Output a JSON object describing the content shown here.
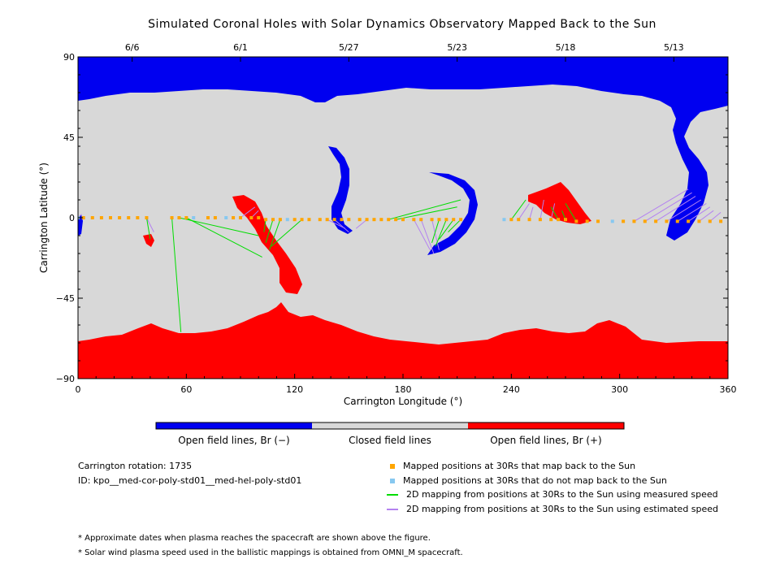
{
  "title": "Simulated Coronal Holes with Solar Dynamics Observatory Mapped Back to the Sun",
  "colors": {
    "open_negative": "#0000f0",
    "closed": "#d8d8d8",
    "open_positive": "#ff0000",
    "mapped_back": "#ffa500",
    "not_mapped": "#87c8f0",
    "measured_speed": "#00dd00",
    "estimated_speed": "#b482f0"
  },
  "chart_data": {
    "type": "map",
    "xlabel": "Carrington Longitude (°)",
    "ylabel": "Carrington Latitude (°)",
    "xlim": [
      0,
      360
    ],
    "ylim": [
      -90,
      90
    ],
    "x_ticks": [
      "0",
      "60",
      "120",
      "180",
      "240",
      "300",
      "360"
    ],
    "y_ticks": [
      "90",
      "45",
      "0",
      "−45",
      "−90"
    ],
    "top_axis_dates": [
      {
        "longitude": 30,
        "label": "6/6"
      },
      {
        "longitude": 90,
        "label": "6/1"
      },
      {
        "longitude": 150,
        "label": "5/27"
      },
      {
        "longitude": 210,
        "label": "5/23"
      },
      {
        "longitude": 270,
        "label": "5/18"
      },
      {
        "longitude": 330,
        "label": "5/13"
      }
    ],
    "colorbar_labels": [
      "Open field lines, Br (−)",
      "Closed field lines",
      "Open field lines, Br (+)"
    ],
    "mapped_points": [
      {
        "lon": 3,
        "lat": 0
      },
      {
        "lon": 8,
        "lat": 0
      },
      {
        "lon": 13,
        "lat": 0
      },
      {
        "lon": 18,
        "lat": 0
      },
      {
        "lon": 23,
        "lat": 0
      },
      {
        "lon": 28,
        "lat": 0
      },
      {
        "lon": 33,
        "lat": 0
      },
      {
        "lon": 38,
        "lat": 0
      },
      {
        "lon": 52,
        "lat": 0
      },
      {
        "lon": 56,
        "lat": 0
      },
      {
        "lon": 60,
        "lat": 0
      },
      {
        "lon": 72,
        "lat": 0
      },
      {
        "lon": 76,
        "lat": 0
      },
      {
        "lon": 86,
        "lat": 0
      },
      {
        "lon": 90,
        "lat": 0
      },
      {
        "lon": 96,
        "lat": 0
      },
      {
        "lon": 100,
        "lat": 0
      },
      {
        "lon": 104,
        "lat": -1
      },
      {
        "lon": 108,
        "lat": -1
      },
      {
        "lon": 112,
        "lat": -1
      },
      {
        "lon": 120,
        "lat": -1
      },
      {
        "lon": 124,
        "lat": -1
      },
      {
        "lon": 128,
        "lat": -1
      },
      {
        "lon": 134,
        "lat": -1
      },
      {
        "lon": 138,
        "lat": -1
      },
      {
        "lon": 142,
        "lat": -1
      },
      {
        "lon": 146,
        "lat": -1
      },
      {
        "lon": 150,
        "lat": -1
      },
      {
        "lon": 156,
        "lat": -1
      },
      {
        "lon": 160,
        "lat": -1
      },
      {
        "lon": 164,
        "lat": -1
      },
      {
        "lon": 168,
        "lat": -1
      },
      {
        "lon": 172,
        "lat": -1
      },
      {
        "lon": 176,
        "lat": -1
      },
      {
        "lon": 180,
        "lat": -1
      },
      {
        "lon": 186,
        "lat": -1
      },
      {
        "lon": 190,
        "lat": -1
      },
      {
        "lon": 196,
        "lat": -1
      },
      {
        "lon": 200,
        "lat": -1
      },
      {
        "lon": 204,
        "lat": -1
      },
      {
        "lon": 208,
        "lat": -1
      },
      {
        "lon": 212,
        "lat": -1
      },
      {
        "lon": 240,
        "lat": -1
      },
      {
        "lon": 244,
        "lat": -1
      },
      {
        "lon": 250,
        "lat": -1
      },
      {
        "lon": 256,
        "lat": -1
      },
      {
        "lon": 262,
        "lat": -1
      },
      {
        "lon": 266,
        "lat": -1
      },
      {
        "lon": 270,
        "lat": -1
      },
      {
        "lon": 276,
        "lat": -2
      },
      {
        "lon": 282,
        "lat": -2
      },
      {
        "lon": 288,
        "lat": -2
      },
      {
        "lon": 302,
        "lat": -2
      },
      {
        "lon": 308,
        "lat": -2
      },
      {
        "lon": 314,
        "lat": -2
      },
      {
        "lon": 320,
        "lat": -2
      },
      {
        "lon": 326,
        "lat": -2
      },
      {
        "lon": 332,
        "lat": -2
      },
      {
        "lon": 338,
        "lat": -2
      },
      {
        "lon": 344,
        "lat": -2
      },
      {
        "lon": 350,
        "lat": -2
      },
      {
        "lon": 356,
        "lat": -2
      }
    ],
    "unmapped_points": [
      {
        "lon": 0,
        "lat": 0
      },
      {
        "lon": 64,
        "lat": 0
      },
      {
        "lon": 82,
        "lat": 0
      },
      {
        "lon": 116,
        "lat": -1
      },
      {
        "lon": 236,
        "lat": -1
      },
      {
        "lon": 296,
        "lat": -2
      }
    ],
    "measured_lines": [
      {
        "from": [
          38,
          0
        ],
        "to": [
          40,
          -12
        ]
      },
      {
        "from": [
          52,
          0
        ],
        "to": [
          57,
          -64
        ]
      },
      {
        "from": [
          56,
          0
        ],
        "to": [
          100,
          -10
        ]
      },
      {
        "from": [
          60,
          0
        ],
        "to": [
          102,
          -22
        ]
      },
      {
        "from": [
          104,
          -1
        ],
        "to": [
          103,
          -8
        ]
      },
      {
        "from": [
          108,
          -1
        ],
        "to": [
          104,
          -14
        ]
      },
      {
        "from": [
          112,
          -1
        ],
        "to": [
          106,
          -18
        ]
      },
      {
        "from": [
          124,
          -1
        ],
        "to": [
          107,
          -16
        ]
      },
      {
        "from": [
          172,
          -1
        ],
        "to": [
          212,
          10
        ]
      },
      {
        "from": [
          176,
          -1
        ],
        "to": [
          210,
          6
        ]
      },
      {
        "from": [
          200,
          -1
        ],
        "to": [
          196,
          -14
        ]
      },
      {
        "from": [
          204,
          -1
        ],
        "to": [
          198,
          -16
        ]
      },
      {
        "from": [
          208,
          -1
        ],
        "to": [
          200,
          -12
        ]
      },
      {
        "from": [
          212,
          -1
        ],
        "to": [
          205,
          -8
        ]
      },
      {
        "from": [
          240,
          -1
        ],
        "to": [
          248,
          10
        ]
      },
      {
        "from": [
          266,
          -1
        ],
        "to": [
          262,
          6
        ]
      },
      {
        "from": [
          270,
          -1
        ],
        "to": [
          268,
          4
        ]
      },
      {
        "from": [
          276,
          -2
        ],
        "to": [
          270,
          8
        ]
      }
    ],
    "estimated_lines": [
      {
        "from": [
          0,
          0
        ],
        "to": [
          2,
          2
        ]
      },
      {
        "from": [
          38,
          0
        ],
        "to": [
          42,
          -8
        ]
      },
      {
        "from": [
          90,
          0
        ],
        "to": [
          98,
          6
        ]
      },
      {
        "from": [
          96,
          0
        ],
        "to": [
          100,
          4
        ]
      },
      {
        "from": [
          138,
          -1
        ],
        "to": [
          148,
          -6
        ]
      },
      {
        "from": [
          142,
          -1
        ],
        "to": [
          150,
          -8
        ]
      },
      {
        "from": [
          160,
          -1
        ],
        "to": [
          154,
          -6
        ]
      },
      {
        "from": [
          186,
          -1
        ],
        "to": [
          195,
          -18
        ]
      },
      {
        "from": [
          190,
          -1
        ],
        "to": [
          197,
          -20
        ]
      },
      {
        "from": [
          196,
          -1
        ],
        "to": [
          200,
          -18
        ]
      },
      {
        "from": [
          244,
          -1
        ],
        "to": [
          250,
          8
        ]
      },
      {
        "from": [
          250,
          -1
        ],
        "to": [
          252,
          6
        ]
      },
      {
        "from": [
          256,
          -1
        ],
        "to": [
          258,
          10
        ]
      },
      {
        "from": [
          262,
          -1
        ],
        "to": [
          264,
          8
        ]
      },
      {
        "from": [
          308,
          -2
        ],
        "to": [
          338,
          16
        ]
      },
      {
        "from": [
          314,
          -2
        ],
        "to": [
          340,
          14
        ]
      },
      {
        "from": [
          320,
          -2
        ],
        "to": [
          342,
          12
        ]
      },
      {
        "from": [
          326,
          -2
        ],
        "to": [
          345,
          10
        ]
      },
      {
        "from": [
          332,
          -2
        ],
        "to": [
          348,
          8
        ]
      },
      {
        "from": [
          338,
          -2
        ],
        "to": [
          350,
          6
        ]
      },
      {
        "from": [
          344,
          -2
        ],
        "to": [
          352,
          4
        ]
      },
      {
        "from": [
          350,
          -2
        ],
        "to": [
          356,
          3
        ]
      }
    ]
  },
  "info": {
    "rotation": "Carrington rotation: 1735",
    "id": "ID: kpo__med-cor-poly-std01__med-hel-poly-std01"
  },
  "legend": [
    {
      "label": "Mapped positions at 30Rs that map back to the Sun"
    },
    {
      "label": "Mapped positions at 30Rs that do not map back to the Sun"
    },
    {
      "label": "2D mapping from positions at 30Rs to the Sun using measured speed"
    },
    {
      "label": "2D mapping from positions at 30Rs to the Sun using estimated speed"
    }
  ],
  "notes": [
    "* Approximate dates when plasma reaches the spacecraft are shown above the figure.",
    "* Solar wind plasma speed used in the ballistic mappings is obtained from OMNI_M spacecraft."
  ]
}
